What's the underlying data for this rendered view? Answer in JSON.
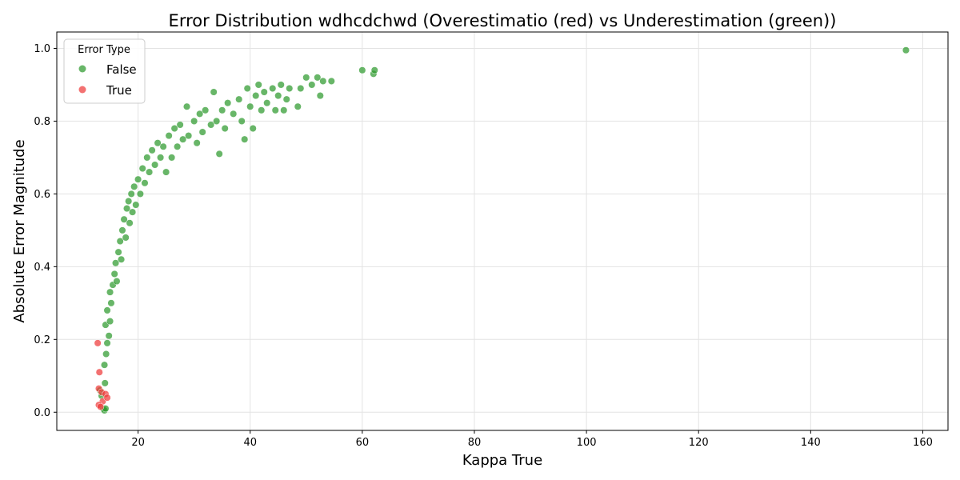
{
  "chart_data": {
    "type": "scatter",
    "title": "Error Distribution wdhcdchwd (Overestimatio (red) vs Underestimation (green))",
    "xlabel": "Kappa True",
    "ylabel": "Absolute Error Magnitude",
    "xlim": [
      5.5,
      164.5
    ],
    "ylim": [
      -0.05,
      1.045
    ],
    "xticks": [
      20,
      40,
      60,
      80,
      100,
      120,
      140,
      160
    ],
    "yticks": [
      0.0,
      0.2,
      0.4,
      0.6,
      0.8,
      1.0
    ],
    "grid": true,
    "legend": {
      "title": "Error Type",
      "placement": "top-left",
      "entries": [
        {
          "label": "False",
          "color": "#2e9a2e"
        },
        {
          "label": "True",
          "color": "#ee3a3a"
        }
      ]
    },
    "colors": {
      "False": "#2e9a2e",
      "True": "#ee3a3a"
    },
    "series": [
      {
        "name": "False",
        "color": "#2e9a2e",
        "points": [
          [
            13.2,
            0.06
          ],
          [
            13.5,
            0.045
          ],
          [
            13.8,
            0.01
          ],
          [
            14.0,
            0.005
          ],
          [
            14.2,
            0.01
          ],
          [
            14.1,
            0.08
          ],
          [
            14.0,
            0.13
          ],
          [
            14.3,
            0.16
          ],
          [
            14.5,
            0.19
          ],
          [
            14.2,
            0.24
          ],
          [
            14.8,
            0.21
          ],
          [
            14.5,
            0.28
          ],
          [
            15.0,
            0.25
          ],
          [
            15.2,
            0.3
          ],
          [
            15.0,
            0.33
          ],
          [
            15.5,
            0.35
          ],
          [
            15.8,
            0.38
          ],
          [
            16.0,
            0.41
          ],
          [
            16.2,
            0.36
          ],
          [
            16.5,
            0.44
          ],
          [
            16.8,
            0.47
          ],
          [
            17.0,
            0.42
          ],
          [
            17.2,
            0.5
          ],
          [
            17.5,
            0.53
          ],
          [
            17.8,
            0.48
          ],
          [
            18.0,
            0.56
          ],
          [
            18.3,
            0.58
          ],
          [
            18.5,
            0.52
          ],
          [
            18.8,
            0.6
          ],
          [
            19.0,
            0.55
          ],
          [
            19.3,
            0.62
          ],
          [
            19.6,
            0.57
          ],
          [
            20.0,
            0.64
          ],
          [
            20.4,
            0.6
          ],
          [
            20.8,
            0.67
          ],
          [
            21.2,
            0.63
          ],
          [
            21.6,
            0.7
          ],
          [
            22.0,
            0.66
          ],
          [
            22.5,
            0.72
          ],
          [
            23.0,
            0.68
          ],
          [
            23.5,
            0.74
          ],
          [
            24.0,
            0.7
          ],
          [
            24.5,
            0.73
          ],
          [
            25.0,
            0.66
          ],
          [
            25.5,
            0.76
          ],
          [
            26.0,
            0.7
          ],
          [
            26.5,
            0.78
          ],
          [
            27.0,
            0.73
          ],
          [
            27.5,
            0.79
          ],
          [
            28.0,
            0.75
          ],
          [
            28.7,
            0.84
          ],
          [
            29.0,
            0.76
          ],
          [
            30.0,
            0.8
          ],
          [
            30.5,
            0.74
          ],
          [
            31.0,
            0.82
          ],
          [
            31.5,
            0.77
          ],
          [
            32.0,
            0.83
          ],
          [
            33.0,
            0.79
          ],
          [
            33.5,
            0.88
          ],
          [
            34.0,
            0.8
          ],
          [
            34.5,
            0.71
          ],
          [
            35.0,
            0.83
          ],
          [
            35.5,
            0.78
          ],
          [
            36.0,
            0.85
          ],
          [
            37.0,
            0.82
          ],
          [
            38.0,
            0.86
          ],
          [
            38.5,
            0.8
          ],
          [
            39.0,
            0.75
          ],
          [
            39.5,
            0.89
          ],
          [
            40.0,
            0.84
          ],
          [
            40.5,
            0.78
          ],
          [
            41.0,
            0.87
          ],
          [
            41.5,
            0.9
          ],
          [
            42.0,
            0.83
          ],
          [
            42.5,
            0.88
          ],
          [
            43.0,
            0.85
          ],
          [
            44.0,
            0.89
          ],
          [
            44.5,
            0.83
          ],
          [
            45.0,
            0.87
          ],
          [
            45.5,
            0.9
          ],
          [
            46.0,
            0.83
          ],
          [
            46.5,
            0.86
          ],
          [
            47.0,
            0.89
          ],
          [
            48.5,
            0.84
          ],
          [
            49.0,
            0.89
          ],
          [
            50.0,
            0.92
          ],
          [
            51.0,
            0.9
          ],
          [
            52.0,
            0.92
          ],
          [
            52.5,
            0.87
          ],
          [
            53.0,
            0.91
          ],
          [
            54.5,
            0.91
          ],
          [
            60.0,
            0.94
          ],
          [
            62.0,
            0.93
          ],
          [
            62.2,
            0.94
          ],
          [
            157.0,
            0.995
          ]
        ]
      },
      {
        "name": "True",
        "color": "#ee3a3a",
        "points": [
          [
            12.8,
            0.19
          ],
          [
            13.1,
            0.11
          ],
          [
            13.0,
            0.065
          ],
          [
            13.5,
            0.055
          ],
          [
            13.7,
            0.03
          ],
          [
            13.0,
            0.02
          ],
          [
            13.3,
            0.015
          ],
          [
            14.2,
            0.05
          ],
          [
            14.5,
            0.04
          ]
        ]
      }
    ]
  }
}
